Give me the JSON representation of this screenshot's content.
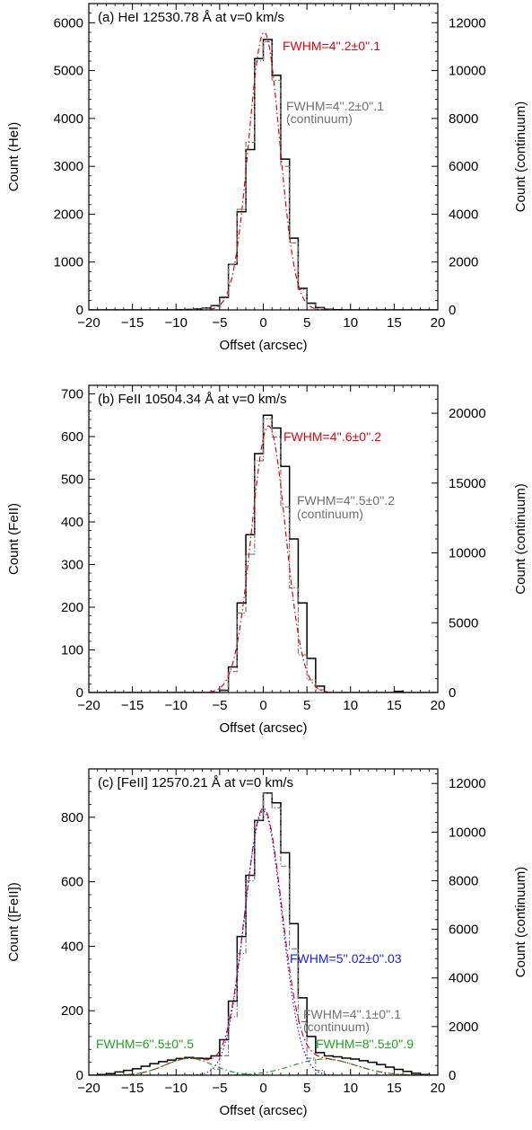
{
  "chart_data": [
    {
      "type": "line",
      "title": "(a) HeI 12530.78 Å at v=0 km/s",
      "xlabel": "Offset (arcsec)",
      "ylabel": "Count (HeI)",
      "ylabel_right": "Count (continuum)",
      "xlim": [
        -20,
        20
      ],
      "ylim": [
        0,
        6400
      ],
      "ylim_right": [
        0,
        12800
      ],
      "xticks": [
        -20,
        -15,
        -10,
        -5,
        0,
        5,
        10,
        15,
        20
      ],
      "xtick_labels": [
        "−20",
        "−15",
        "−10",
        "−5",
        "0",
        "5",
        "10",
        "15",
        "20"
      ],
      "yticks": [
        0,
        1000,
        2000,
        3000,
        4000,
        5000,
        6000
      ],
      "yticks_right": [
        0,
        2000,
        4000,
        6000,
        8000,
        10000,
        12000
      ],
      "annotations": [
        {
          "text": "FWHM=4''.2±0''.1",
          "color": "#e8000b"
        },
        {
          "text": "FWHM=4''.2±0''.1",
          "color": "#707070"
        },
        {
          "text": "(continuum)",
          "color": "#707070"
        }
      ],
      "series": [
        {
          "style": "step",
          "color": "#000000",
          "x": [
            -20,
            -19,
            -18,
            -17,
            -16,
            -15,
            -14,
            -13,
            -12,
            -11,
            -10,
            -9,
            -8,
            -7,
            -6,
            -5,
            -4,
            -3,
            -2,
            -1,
            0,
            1,
            2,
            3,
            4,
            5,
            6,
            7,
            8,
            9,
            10,
            11,
            12,
            13,
            14,
            15,
            16,
            17,
            18,
            19
          ],
          "values": [
            0,
            0,
            0,
            0,
            0,
            0,
            0,
            0,
            0,
            0,
            5,
            10,
            20,
            40,
            90,
            260,
            950,
            2050,
            3350,
            5250,
            5650,
            4900,
            3150,
            1500,
            450,
            140,
            50,
            15,
            5,
            0,
            0,
            0,
            0,
            0,
            0,
            0,
            0,
            0,
            0,
            0
          ]
        },
        {
          "style": "step-dashdot",
          "color": "#707070",
          "axis": "right",
          "x": [
            -20,
            -19,
            -18,
            -17,
            -16,
            -15,
            -14,
            -13,
            -12,
            -11,
            -10,
            -9,
            -8,
            -7,
            -6,
            -5,
            -4,
            -3,
            -2,
            -1,
            0,
            1,
            2,
            3,
            4,
            5,
            6,
            7,
            8,
            9,
            10,
            11,
            12,
            13,
            14,
            15,
            16,
            17,
            18,
            19
          ],
          "values": [
            0,
            0,
            0,
            0,
            0,
            0,
            0,
            0,
            0,
            0,
            10,
            20,
            40,
            80,
            200,
            550,
            1900,
            4200,
            7000,
            10400,
            11200,
            9600,
            6000,
            2800,
            850,
            250,
            80,
            20,
            0,
            0,
            0,
            0,
            0,
            0,
            0,
            0,
            0,
            0,
            0,
            0
          ]
        },
        {
          "style": "fit",
          "color": "#e8000b",
          "peak": 5800,
          "center": 0.1,
          "fwhm": 4.2
        }
      ]
    },
    {
      "type": "line",
      "title": "(b) FeII 10504.34 Å at v=0 km/s",
      "xlabel": "Offset (arcsec)",
      "ylabel": "Count (FeII)",
      "ylabel_right": "Count (continuum)",
      "xlim": [
        -20,
        20
      ],
      "ylim": [
        0,
        720
      ],
      "ylim_right": [
        0,
        22000
      ],
      "xticks": [
        -20,
        -15,
        -10,
        -5,
        0,
        5,
        10,
        15,
        20
      ],
      "xtick_labels": [
        "−20",
        "−15",
        "−10",
        "−5",
        "0",
        "5",
        "10",
        "15",
        "20"
      ],
      "yticks": [
        0,
        100,
        200,
        300,
        400,
        500,
        600,
        700
      ],
      "yticks_right": [
        0,
        5000,
        10000,
        15000,
        20000
      ],
      "annotations": [
        {
          "text": "FWHM=4''.6±0''.2",
          "color": "#e8000b"
        },
        {
          "text": "FWHM=4''.5±0''.2",
          "color": "#707070"
        },
        {
          "text": "(continuum)",
          "color": "#707070"
        }
      ],
      "series": [
        {
          "style": "step",
          "color": "#000000",
          "x": [
            -20,
            -19,
            -18,
            -17,
            -16,
            -15,
            -14,
            -13,
            -12,
            -11,
            -10,
            -9,
            -8,
            -7,
            -6,
            -5,
            -4,
            -3,
            -2,
            -1,
            0,
            1,
            2,
            3,
            4,
            5,
            6,
            7,
            8,
            9,
            10,
            11,
            12,
            13,
            14,
            15,
            16,
            17,
            18,
            19
          ],
          "values": [
            0,
            0,
            0,
            0,
            0,
            0,
            0,
            0,
            0,
            0,
            0,
            0,
            0,
            0,
            0,
            5,
            60,
            210,
            370,
            560,
            650,
            620,
            530,
            360,
            210,
            80,
            15,
            0,
            0,
            0,
            0,
            0,
            0,
            0,
            0,
            3,
            0,
            0,
            0,
            0
          ]
        },
        {
          "style": "step-dashdot",
          "color": "#707070",
          "axis": "right",
          "x": [
            -20,
            -19,
            -18,
            -17,
            -16,
            -15,
            -14,
            -13,
            -12,
            -11,
            -10,
            -9,
            -8,
            -7,
            -6,
            -5,
            -4,
            -3,
            -2,
            -1,
            0,
            1,
            2,
            3,
            4,
            5,
            6,
            7,
            8,
            9,
            10,
            11,
            12,
            13,
            14,
            15,
            16,
            17,
            18,
            19
          ],
          "values": [
            0,
            0,
            0,
            0,
            0,
            0,
            0,
            0,
            0,
            0,
            0,
            0,
            0,
            0,
            0,
            200,
            1500,
            5700,
            9900,
            16600,
            19600,
            18300,
            13300,
            7500,
            2700,
            900,
            200,
            0,
            0,
            0,
            0,
            0,
            0,
            0,
            0,
            0,
            0,
            0,
            0,
            0
          ]
        },
        {
          "style": "fit",
          "color": "#e8000b",
          "peak": 625,
          "center": 0.6,
          "fwhm": 4.6
        }
      ]
    },
    {
      "type": "line",
      "title": "(c) [FeII] 12570.21 Å at v=0 km/s",
      "xlabel": "Offset (arcsec)",
      "ylabel": "Count ([FeII])",
      "ylabel_right": "Count (continuum)",
      "xlim": [
        -20,
        20
      ],
      "ylim": [
        0,
        950
      ],
      "ylim_right": [
        0,
        12600
      ],
      "xticks": [
        -20,
        -15,
        -10,
        -5,
        0,
        5,
        10,
        15,
        20
      ],
      "xtick_labels": [
        "−20",
        "−15",
        "−10",
        "−5",
        "0",
        "5",
        "10",
        "15",
        "20"
      ],
      "yticks": [
        0,
        200,
        400,
        600,
        800
      ],
      "yticks_right": [
        0,
        2000,
        4000,
        6000,
        8000,
        10000,
        12000
      ],
      "annotations": [
        {
          "text": "FWHM=5''.02±0''.03",
          "color": "#1a1aff"
        },
        {
          "text": "FWHM=4''.1±0''.1",
          "color": "#707070"
        },
        {
          "text": "(continuum)",
          "color": "#707070"
        },
        {
          "text": "FWHM=6''.5±0''.5",
          "color": "#22a022"
        },
        {
          "text": "FWHM=8''.5±0''.9",
          "color": "#22a022"
        }
      ],
      "series": [
        {
          "style": "step",
          "color": "#000000",
          "x": [
            -20,
            -19,
            -18,
            -17,
            -16,
            -15,
            -14,
            -13,
            -12,
            -11,
            -10,
            -9,
            -8,
            -7,
            -6,
            -5,
            -4,
            -3,
            -2,
            -1,
            0,
            1,
            2,
            3,
            4,
            5,
            6,
            7,
            8,
            9,
            10,
            11,
            12,
            13,
            14,
            15,
            16,
            17,
            18,
            19
          ],
          "values": [
            0,
            2,
            5,
            10,
            15,
            20,
            28,
            36,
            42,
            47,
            52,
            55,
            53,
            52,
            60,
            110,
            230,
            430,
            620,
            790,
            875,
            845,
            690,
            470,
            240,
            120,
            70,
            60,
            57,
            53,
            50,
            45,
            40,
            33,
            25,
            18,
            12,
            6,
            2,
            0
          ]
        },
        {
          "style": "step-dashdot",
          "color": "#707070",
          "axis": "right",
          "x": [
            -20,
            -19,
            -18,
            -17,
            -16,
            -15,
            -14,
            -13,
            -12,
            -11,
            -10,
            -9,
            -8,
            -7,
            -6,
            -5,
            -4,
            -3,
            -2,
            -1,
            0,
            1,
            2,
            3,
            4,
            5,
            6,
            7,
            8,
            9,
            10,
            11,
            12,
            13,
            14,
            15,
            16,
            17,
            18,
            19
          ],
          "values": [
            0,
            0,
            0,
            0,
            0,
            0,
            0,
            0,
            0,
            0,
            0,
            0,
            0,
            0,
            250,
            800,
            2400,
            5000,
            8000,
            10500,
            11600,
            11000,
            8600,
            5200,
            2200,
            700,
            200,
            0,
            0,
            0,
            0,
            0,
            0,
            0,
            0,
            0,
            0,
            0,
            0,
            0
          ]
        },
        {
          "style": "fit-total",
          "color": "#e8000b"
        },
        {
          "style": "fit",
          "color": "#1a1aff",
          "peak": 820,
          "center": 0.0,
          "fwhm": 5.02
        },
        {
          "style": "fit",
          "color": "#22a022",
          "peak": 52,
          "center": -8.5,
          "fwhm": 6.5
        },
        {
          "style": "fit",
          "color": "#22a022",
          "peak": 50,
          "center": 7.0,
          "fwhm": 8.5
        }
      ]
    }
  ]
}
